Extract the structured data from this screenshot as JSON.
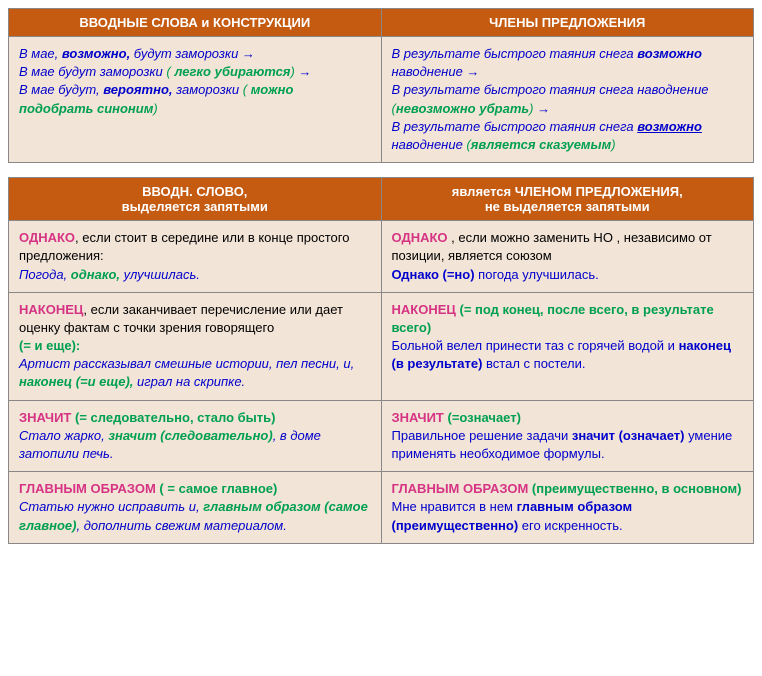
{
  "colors": {
    "header_bg": "#c55a11",
    "header_text": "#ffffff",
    "cell_bg": "#f2e4d6",
    "border": "#888888",
    "blue": "#0000cc",
    "green": "#00a050",
    "magenta": "#d63384",
    "black": "#000000"
  },
  "table1": {
    "header_left": "ВВОДНЫЕ СЛОВА и КОНСТРУКЦИИ",
    "header_right": "ЧЛЕНЫ ПРЕДЛОЖЕНИЯ",
    "left": {
      "l1a": "В мае, ",
      "l1b": "возможно,",
      "l1c": " будут заморозки ",
      "arrow1": "→",
      "l2a": "В мае будут заморозки",
      "l2b": " ( ",
      "l2c": "легко убираются",
      "l2d": ") ",
      "arrow2": "→",
      "l3a": "В мае будут, ",
      "l3b": "вероятно,",
      "l3c": "  заморозки  ",
      "l3d": "( ",
      "l3e": "можно подобрать синоним",
      "l3f": ")"
    },
    "right": {
      "r1a": "В результате быстрого таяния снега ",
      "r1b": "возможно",
      "r1c": " наводнение ",
      "arrow1": "→",
      "r2a": "В результате быстрого таяния снега наводнение",
      "r3a": "(",
      "r3b": "невозможно убрать",
      "r3c": ") ",
      "arrow2": "→",
      "r4a": "В результате быстрого таяния снега ",
      "r4b": "возможно",
      "r4c": " наводнение ",
      "r4d": "(",
      "r4e": "является сказуемым",
      "r4f": ")"
    }
  },
  "table2": {
    "header_left_l1": "ВВОДН.  СЛОВО,",
    "header_left_l2": "выделяется запятыми",
    "header_right_l1": "является ЧЛЕНОМ ПРЕДЛОЖЕНИЯ,",
    "header_right_l2": "не выделяется запятыми",
    "row1": {
      "left": {
        "a": "ОДНАКО",
        "b": ", если стоит  в середине  или в конце  простого предложения:",
        "c": "Погода, ",
        "d": "однако,",
        "e": " улучшилась."
      },
      "right": {
        "a": "ОДНАКО",
        "b": " ,  если можно заменить  НО , независимо от позиции, является союзом",
        "c": "Однако (=но)",
        "d": " погода улучшилась."
      }
    },
    "row2": {
      "left": {
        "a": "НАКОНЕЦ",
        "b": ",  если заканчивает перечисление или дает оценку фактам с точки зрения говорящего",
        "c": "(",
        "d": "= и еще",
        "e": "):",
        "f": "Артист рассказывал смешные истории, пел песни, и, ",
        "g": "наконец (=и еще),",
        "h": " играл на скрипке."
      },
      "right": {
        "a": "НАКОНЕЦ",
        "b": " (",
        "c": "= под конец,  после всего, в результате всего",
        "d": ")",
        "e": "Больной велел принести таз с горячей водой и ",
        "f": "наконец (в результате)",
        "g": " встал с постели."
      }
    },
    "row3": {
      "left": {
        "a": "ЗНАЧИТ",
        "b": "  (",
        "c": "= следовательно, стало быть",
        "d": ")",
        "e": "Стало жарко, ",
        "f": "значит (следовательно)",
        "g": ", в доме затопили печь."
      },
      "right": {
        "a": "ЗНАЧИТ",
        "b": "  (",
        "c": "=означает",
        "d": ")",
        "e": "Правильное решение  задачи ",
        "f": "значит (означает)",
        "g": " умение применять необходимое формулы."
      }
    },
    "row4": {
      "left": {
        "a": "ГЛАВНЫМ ОБРАЗОМ",
        "b": "  ( ",
        "c": "= самое главное",
        "d": ")",
        "e": "Статью нужно исправить и, ",
        "f": "главным образом (самое главное)",
        "g": ", дополнить свежим материалом."
      },
      "right": {
        "a": "ГЛАВНЫМ ОБРАЗОМ",
        "b": "  (",
        "c": "преимущественно, в основном",
        "d": ")",
        "e": "Мне нравится в нем ",
        "f": "главным образом (преимущественно)",
        "g": " его искренность."
      }
    }
  }
}
